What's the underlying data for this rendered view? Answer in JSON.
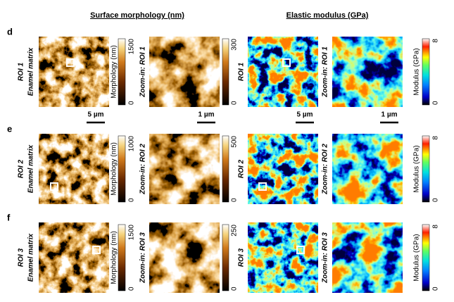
{
  "headers": [
    "Surface morphology (nm)",
    "Elastic modulus (GPa)"
  ],
  "rows": [
    {
      "panel": "d",
      "roi": "ROI 1",
      "region": "Enamel matrix",
      "zoom_label": "Zoom-in: ROI 1",
      "morph_label": "Morphology (nm)",
      "morph_ticks": [
        "0",
        "1500"
      ],
      "zoom_ticks": [
        "0",
        "300"
      ],
      "modulus_label": "Modulus (GPa)",
      "modulus_ticks": [
        "0",
        "8"
      ],
      "scale_bars": [
        "5 µm",
        "1 µm",
        "5 µm",
        "1 µm"
      ]
    },
    {
      "panel": "e",
      "roi": "ROI 2",
      "region": "Enamel matrix",
      "zoom_label": "Zoom-in: ROI 2",
      "morph_label": "Morphology (nm)",
      "morph_ticks": [
        "0",
        "1000"
      ],
      "zoom_ticks": [
        "0",
        "500"
      ],
      "modulus_label": "Modulus (GPa)",
      "modulus_ticks": [
        "0",
        "8"
      ]
    },
    {
      "panel": "f",
      "roi": "ROI 3",
      "region": "Enamel matrix",
      "zoom_label": "Zoom-in: ROI 3",
      "morph_label": "Morphology (nm)",
      "morph_ticks": [
        "0",
        "1500"
      ],
      "zoom_ticks": [
        "0",
        "250"
      ],
      "modulus_label": "Modulus (GPa)",
      "modulus_ticks": [
        "0",
        "8"
      ]
    }
  ]
}
